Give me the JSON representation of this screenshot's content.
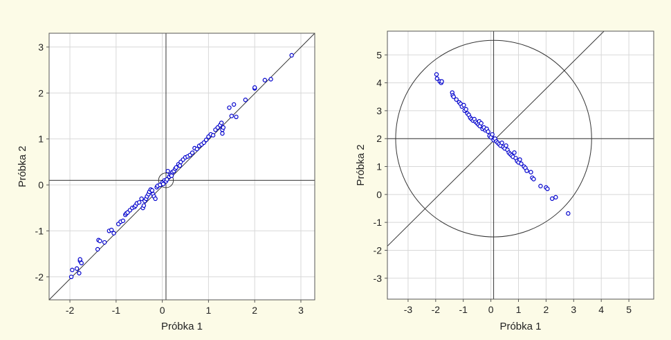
{
  "colors": {
    "background": "#fcfbe7",
    "plot_area": "#ffffff",
    "grid": "#d8d8d8",
    "points": "#0000cc",
    "lines": "#333333"
  },
  "chart_data": [
    {
      "type": "scatter",
      "title": "",
      "xlabel": "Próbka 1",
      "ylabel": "Próbka 2",
      "xlim": [
        -2.45,
        3.3
      ],
      "ylim": [
        -2.5,
        3.3
      ],
      "xticks": [
        -2,
        -1,
        0,
        1,
        2,
        3
      ],
      "yticks": [
        -2,
        -1,
        0,
        1,
        2,
        3
      ],
      "grid": true,
      "reference_lines": {
        "vertical_x": 0.08,
        "horizontal_y": 0.1
      },
      "fit_line": {
        "x": [
          -2.45,
          3.3
        ],
        "y": [
          -2.5,
          3.3
        ]
      },
      "ellipse": {
        "cx": 0.08,
        "cy": 0.1,
        "rx": 0.16,
        "ry": 0.16
      },
      "series": [
        {
          "x": [
            -1.97,
            -1.95,
            -1.85,
            -1.8,
            -1.78,
            -1.75,
            -1.78,
            -1.4,
            -1.38,
            -1.35,
            -1.25,
            -1.15,
            -1.1,
            -1.05,
            -0.95,
            -0.9,
            -0.85,
            -0.8,
            -0.78,
            -0.75,
            -0.7,
            -0.65,
            -0.6,
            -0.58,
            -0.55,
            -0.5,
            -0.45,
            -0.42,
            -0.4,
            -0.38,
            -0.35,
            -0.33,
            -0.3,
            -0.28,
            -0.25,
            -0.22,
            -0.2,
            -0.18,
            -0.15,
            -0.12,
            -0.1,
            -0.05,
            0.0,
            0.02,
            0.05,
            0.08,
            0.1,
            0.12,
            0.15,
            0.18,
            0.2,
            0.22,
            0.25,
            0.28,
            0.3,
            0.35,
            0.38,
            0.4,
            0.45,
            0.5,
            0.55,
            0.6,
            0.65,
            0.7,
            0.75,
            0.8,
            0.85,
            0.9,
            0.95,
            1.0,
            1.05,
            1.1,
            1.15,
            1.2,
            1.25,
            1.28,
            1.3,
            1.3,
            1.32,
            1.45,
            1.5,
            1.55,
            1.6,
            1.8,
            2.0,
            2.0,
            2.22,
            2.35,
            2.8
          ],
          "y": [
            -2.0,
            -1.85,
            -1.82,
            -1.92,
            -1.65,
            -1.7,
            -1.62,
            -1.4,
            -1.2,
            -1.22,
            -1.25,
            -1.0,
            -0.98,
            -1.05,
            -0.85,
            -0.8,
            -0.78,
            -0.65,
            -0.62,
            -0.6,
            -0.55,
            -0.5,
            -0.48,
            -0.45,
            -0.4,
            -0.38,
            -0.3,
            -0.5,
            -0.45,
            -0.35,
            -0.3,
            -0.25,
            -0.2,
            -0.15,
            -0.1,
            -0.12,
            -0.2,
            -0.25,
            -0.3,
            -0.05,
            -0.02,
            0.0,
            0.05,
            0.02,
            0.1,
            0.08,
            0.12,
            0.3,
            0.18,
            0.22,
            0.2,
            0.28,
            0.3,
            0.35,
            0.38,
            0.45,
            0.42,
            0.5,
            0.55,
            0.6,
            0.62,
            0.65,
            0.7,
            0.8,
            0.78,
            0.85,
            0.88,
            0.92,
            0.98,
            1.05,
            1.1,
            1.08,
            1.2,
            1.25,
            1.3,
            1.35,
            1.12,
            1.2,
            1.25,
            1.68,
            1.5,
            1.75,
            1.48,
            1.85,
            2.1,
            2.12,
            2.28,
            2.3,
            2.82
          ]
        }
      ]
    },
    {
      "type": "scatter",
      "title": "",
      "xlabel": "Próbka 1",
      "ylabel": "Próbka 2",
      "xlim": [
        -3.75,
        5.9
      ],
      "ylim": [
        -3.75,
        5.85
      ],
      "xticks": [
        -3,
        -2,
        -1,
        0,
        1,
        2,
        3,
        4,
        5
      ],
      "yticks": [
        -3,
        -2,
        -1,
        0,
        1,
        2,
        3,
        4,
        5
      ],
      "grid": true,
      "reference_lines": {
        "vertical_x": 0.1,
        "horizontal_y": 2.0
      },
      "fit_line": {
        "x": [
          -3.75,
          4.1
        ],
        "y": [
          -1.85,
          5.85
        ]
      },
      "ellipse": {
        "cx": 0.1,
        "cy": 2.0,
        "rx": 3.55,
        "ry": 3.52
      },
      "series": [
        {
          "x": [
            -1.97,
            -1.95,
            -1.85,
            -1.8,
            -1.78,
            -1.4,
            -1.38,
            -1.35,
            -1.25,
            -1.15,
            -1.1,
            -1.05,
            -0.98,
            -0.95,
            -0.9,
            -0.85,
            -0.8,
            -0.75,
            -0.7,
            -0.65,
            -0.6,
            -0.55,
            -0.5,
            -0.45,
            -0.42,
            -0.4,
            -0.35,
            -0.3,
            -0.25,
            -0.2,
            -0.15,
            -0.1,
            -0.05,
            0.0,
            0.05,
            0.1,
            0.15,
            0.2,
            0.25,
            0.3,
            0.35,
            0.4,
            0.45,
            0.5,
            0.55,
            0.6,
            0.65,
            0.7,
            0.75,
            0.8,
            0.85,
            0.9,
            0.95,
            1.0,
            1.05,
            1.1,
            1.2,
            1.25,
            1.3,
            1.45,
            1.5,
            1.55,
            1.8,
            2.0,
            2.05,
            2.22,
            2.35,
            2.8
          ],
          "y": [
            4.3,
            4.15,
            4.05,
            4.0,
            4.05,
            3.65,
            3.55,
            3.5,
            3.4,
            3.3,
            3.25,
            3.15,
            3.2,
            3.0,
            3.05,
            2.9,
            2.85,
            2.75,
            2.7,
            2.65,
            2.7,
            2.6,
            2.55,
            2.5,
            2.62,
            2.45,
            2.55,
            2.35,
            2.4,
            2.3,
            2.35,
            2.25,
            2.1,
            2.05,
            2.15,
            1.95,
            2.0,
            1.9,
            1.85,
            1.8,
            1.75,
            1.85,
            1.7,
            1.65,
            1.75,
            1.6,
            1.5,
            1.45,
            1.4,
            1.35,
            1.5,
            1.3,
            1.2,
            1.15,
            1.25,
            1.1,
            1.0,
            0.95,
            0.85,
            0.8,
            0.6,
            0.55,
            0.3,
            0.25,
            0.2,
            -0.15,
            -0.1,
            -0.68
          ]
        }
      ]
    }
  ]
}
